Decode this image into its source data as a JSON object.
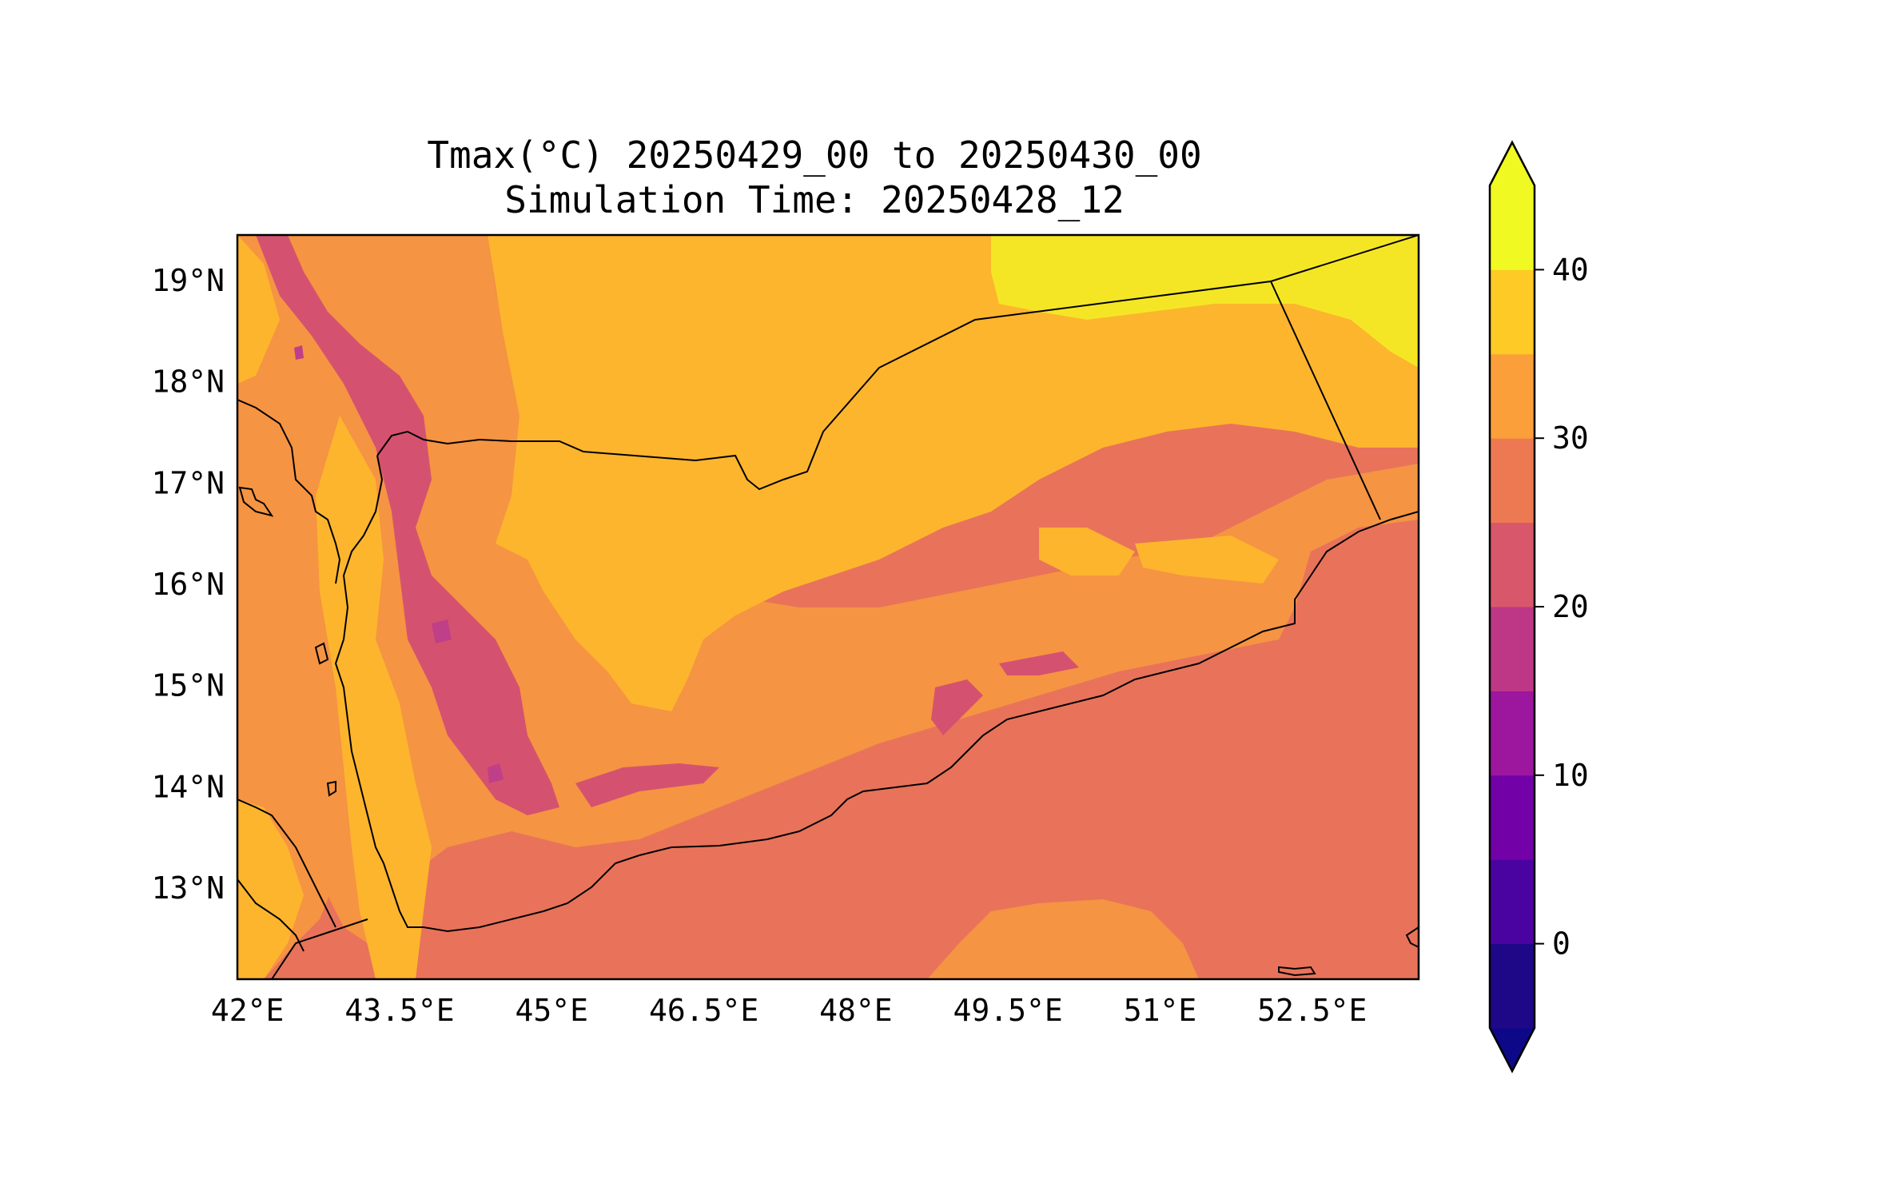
{
  "title": {
    "line1": "Tmax(°C) 20250429_00 to 20250430_00",
    "line2": "Simulation Time: 20250428_12"
  },
  "map": {
    "lon_range": [
      41.9,
      53.55
    ],
    "lat_range": [
      12.1,
      19.45
    ],
    "lon_ticks": [
      {
        "value": 42.0,
        "label": "42°E"
      },
      {
        "value": 43.5,
        "label": "43.5°E"
      },
      {
        "value": 45.0,
        "label": "45°E"
      },
      {
        "value": 46.5,
        "label": "46.5°E"
      },
      {
        "value": 48.0,
        "label": "48°E"
      },
      {
        "value": 49.5,
        "label": "49.5°E"
      },
      {
        "value": 51.0,
        "label": "51°E"
      },
      {
        "value": 52.5,
        "label": "52.5°E"
      }
    ],
    "lat_ticks": [
      {
        "value": 13,
        "label": "13°N"
      },
      {
        "value": 14,
        "label": "14°N"
      },
      {
        "value": 15,
        "label": "15°N"
      },
      {
        "value": 16,
        "label": "16°N"
      },
      {
        "value": 17,
        "label": "17°N"
      },
      {
        "value": 18,
        "label": "18°N"
      },
      {
        "value": 19,
        "label": "19°N"
      }
    ]
  },
  "colorbar": {
    "extend": "both",
    "levels": [
      -5,
      0,
      5,
      10,
      15,
      20,
      25,
      30,
      35,
      40,
      45
    ],
    "colors": [
      "#1e0887",
      "#4a02a0",
      "#7201a8",
      "#9c179e",
      "#bd3786",
      "#d8576b",
      "#ed7953",
      "#fb9f3a",
      "#fdca26",
      "#f0f921"
    ],
    "under_color": "#0d0887",
    "over_color": "#f0f921",
    "ticks": [
      {
        "value": 0,
        "label": "0"
      },
      {
        "value": 10,
        "label": "10"
      },
      {
        "value": 20,
        "label": "20"
      },
      {
        "value": 30,
        "label": "30"
      },
      {
        "value": 40,
        "label": "40"
      }
    ]
  },
  "field_colors": {
    "c15_20": "#bf3f88",
    "c20_25": "#d4526f",
    "c25_30": "#e8735a",
    "c30_35": "#f59442",
    "c35_40": "#fdb52e",
    "c40_45": "#f5e625"
  }
}
